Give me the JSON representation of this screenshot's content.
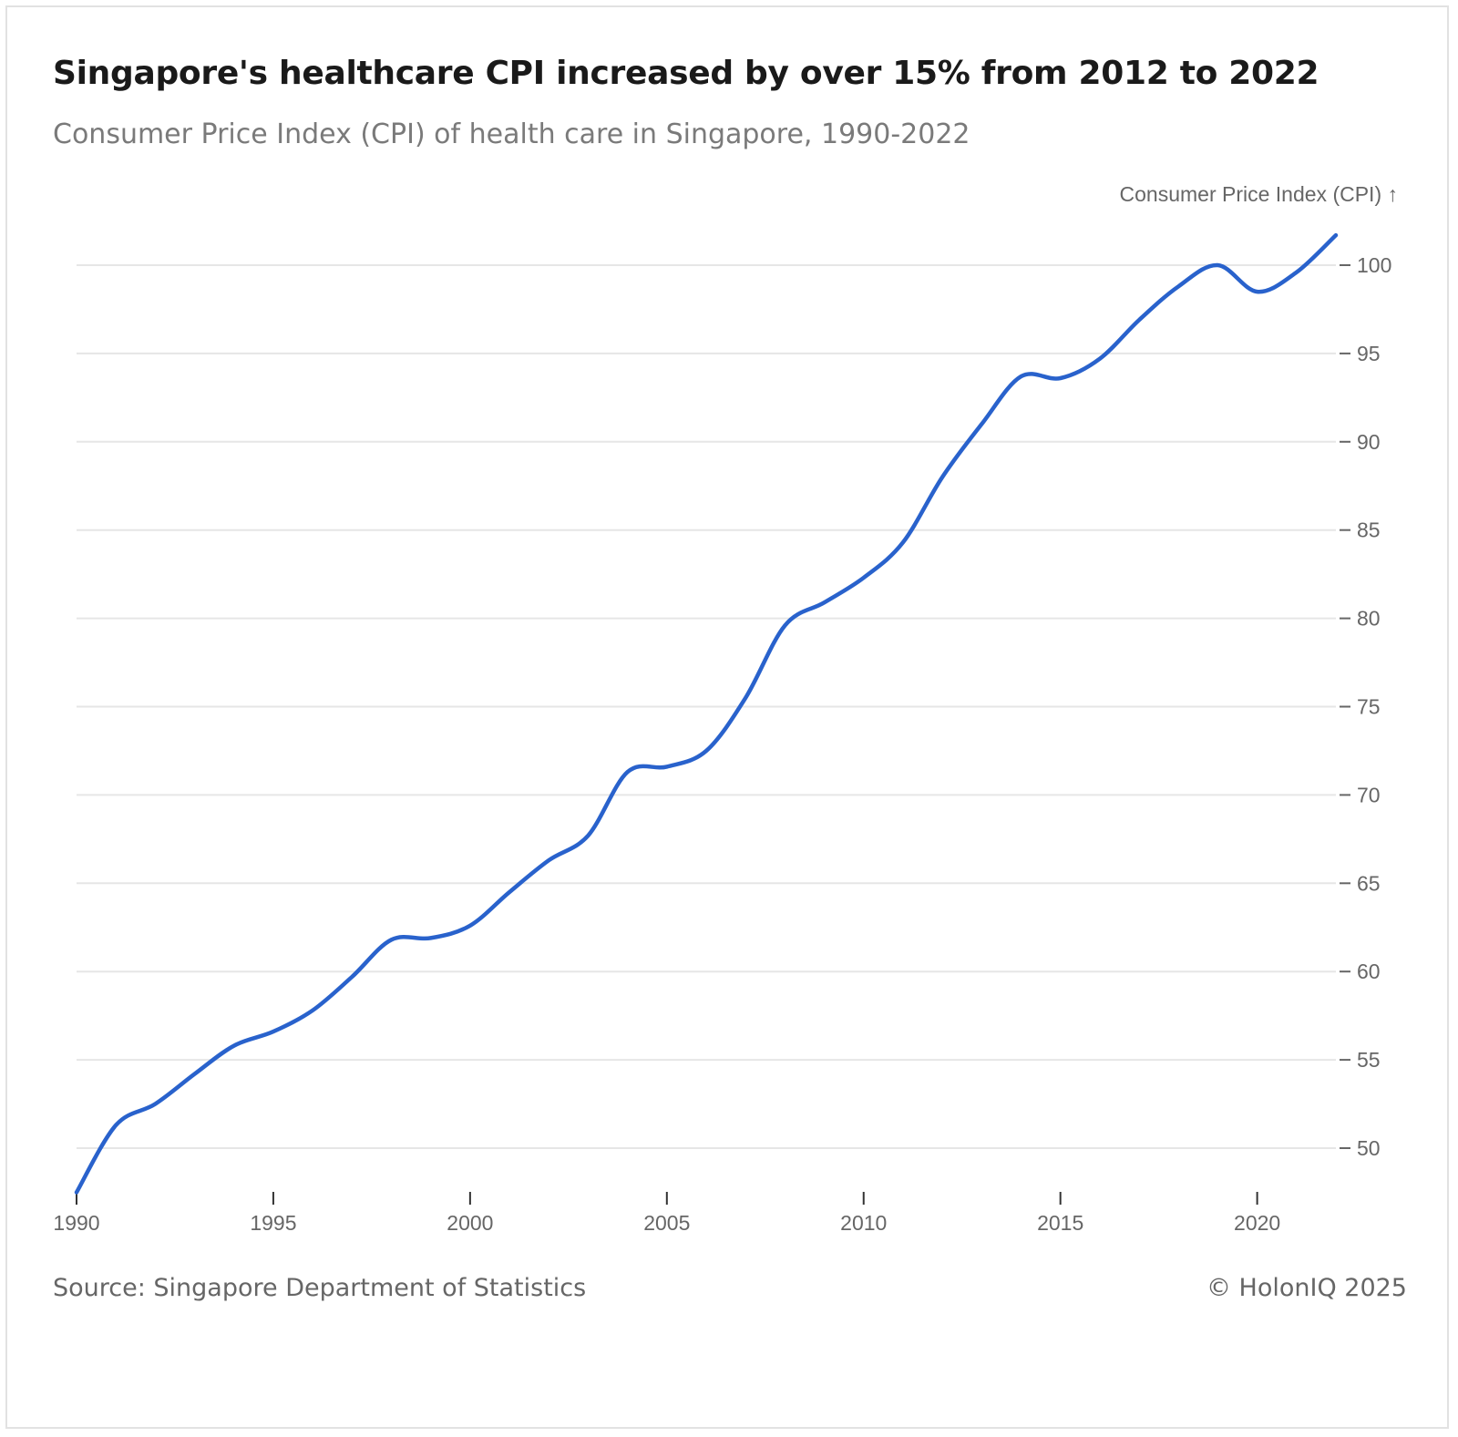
{
  "header": {
    "title": "Singapore's healthcare CPI increased by over 15% from 2012 to 2022",
    "subtitle": "Consumer Price Index (CPI) of health care in Singapore, 1990-2022"
  },
  "footer": {
    "source": "Source: Singapore Department of Statistics",
    "copyright": "© HolonIQ 2025"
  },
  "colors": {
    "line": "#2962cc",
    "grid": "#e6e6e6",
    "tick": "#666666"
  },
  "chart_data": {
    "type": "line",
    "title": "Singapore's healthcare CPI increased by over 15% from 2012 to 2022",
    "subtitle": "Consumer Price Index (CPI) of health care in Singapore, 1990-2022",
    "ylabel": "Consumer Price Index (CPI) ↑",
    "xlabel": "",
    "xlim": [
      1990,
      2022
    ],
    "ylim": [
      47,
      102
    ],
    "x_ticks": [
      1990,
      1995,
      2000,
      2005,
      2010,
      2015,
      2020
    ],
    "y_ticks": [
      50,
      55,
      60,
      65,
      70,
      75,
      80,
      85,
      90,
      95,
      100
    ],
    "grid": true,
    "y_axis_position": "right",
    "series": [
      {
        "x": [
          1990,
          1991,
          1992,
          1993,
          1994,
          1995,
          1996,
          1997,
          1998,
          1999,
          2000,
          2001,
          2002,
          2003,
          2004,
          2005,
          2006,
          2007,
          2008,
          2009,
          2010,
          2011,
          2012,
          2013,
          2014,
          2015,
          2016,
          2017,
          2018,
          2019,
          2020,
          2021,
          2022
        ],
        "values": [
          47.5,
          51.3,
          52.5,
          54.2,
          55.8,
          56.6,
          57.8,
          59.7,
          61.8,
          61.9,
          62.6,
          64.5,
          66.3,
          67.7,
          71.3,
          71.6,
          72.5,
          75.5,
          79.6,
          80.9,
          82.3,
          84.3,
          88.0,
          91.0,
          93.7,
          93.6,
          94.7,
          96.9,
          98.8,
          100.0,
          98.5,
          99.6,
          101.7
        ]
      }
    ]
  }
}
